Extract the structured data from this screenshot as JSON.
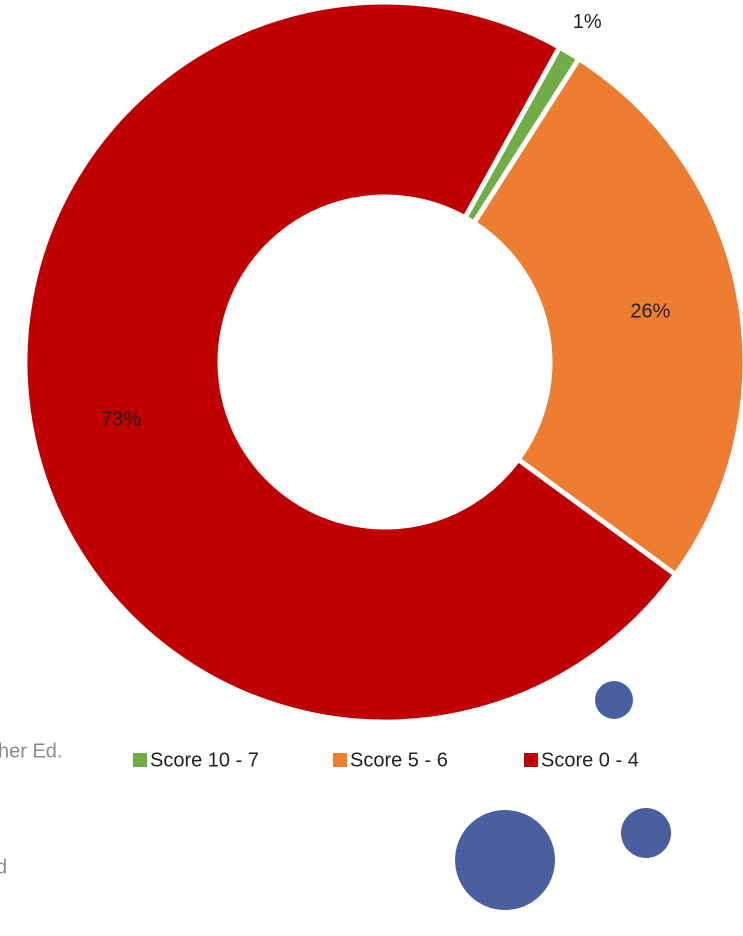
{
  "chart_data": {
    "type": "pie",
    "donut": true,
    "categories": [
      "Score 10 - 7",
      "Score 5 - 6",
      "Score 0 - 4"
    ],
    "values": [
      1,
      26,
      73
    ],
    "value_labels": [
      "1%",
      "26%",
      "73%"
    ],
    "colors": [
      "#70ad47",
      "#ed7d31",
      "#c00000"
    ],
    "legend": "bottom"
  },
  "fragments": [
    "her Ed.",
    "d"
  ]
}
